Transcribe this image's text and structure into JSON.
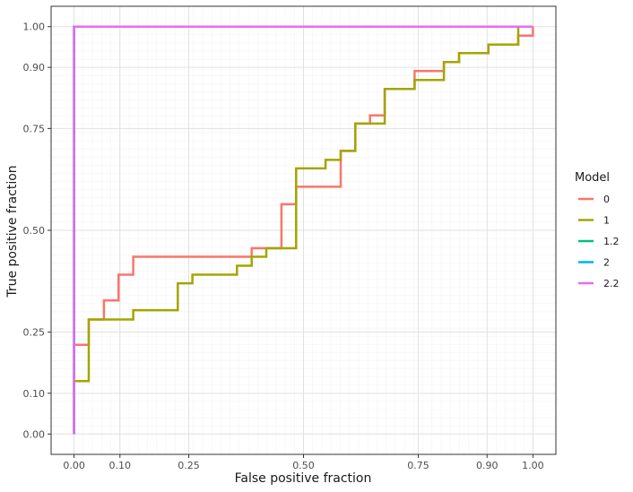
{
  "chart_data": {
    "type": "line",
    "xlabel": "False positive fraction",
    "ylabel": "True positive fraction",
    "xlim": [
      -0.05,
      1.05
    ],
    "ylim": [
      -0.05,
      1.05
    ],
    "x_ticks": [
      0.0,
      0.1,
      0.25,
      0.5,
      0.75,
      0.9,
      1.0
    ],
    "x_tick_labels": [
      "0.00",
      "0.10",
      "0.25",
      "0.50",
      "0.75",
      "0.90",
      "1.00"
    ],
    "y_ticks": [
      0.0,
      0.1,
      0.25,
      0.5,
      0.75,
      0.9,
      1.0
    ],
    "y_tick_labels": [
      "0.00",
      "0.10",
      "0.25",
      "0.50",
      "0.75",
      "0.90",
      "1.00"
    ],
    "grid": true,
    "legend": {
      "title": "Model",
      "position": "right",
      "entries": [
        "0",
        "1",
        "1.2",
        "2",
        "2.2"
      ]
    },
    "series": [
      {
        "name": "0",
        "color": "#F8766D",
        "x": [
          0.0,
          0.0,
          0.032,
          0.032,
          0.065,
          0.065,
          0.097,
          0.097,
          0.129,
          0.129,
          0.387,
          0.387,
          0.452,
          0.452,
          0.484,
          0.484,
          0.581,
          0.581,
          0.613,
          0.613,
          0.645,
          0.645,
          0.677,
          0.677,
          0.742,
          0.742,
          0.806,
          0.806,
          0.839,
          0.839,
          0.903,
          0.903,
          0.968,
          0.968,
          1.0,
          1.0
        ],
        "y": [
          0.0,
          0.219,
          0.219,
          0.281,
          0.281,
          0.328,
          0.328,
          0.391,
          0.391,
          0.435,
          0.435,
          0.456,
          0.456,
          0.564,
          0.564,
          0.607,
          0.607,
          0.695,
          0.695,
          0.762,
          0.762,
          0.782,
          0.782,
          0.847,
          0.847,
          0.891,
          0.891,
          0.913,
          0.913,
          0.935,
          0.935,
          0.956,
          0.956,
          0.978,
          0.978,
          1.0
        ]
      },
      {
        "name": "1",
        "color": "#A3A500",
        "x": [
          0.0,
          0.0,
          0.032,
          0.032,
          0.129,
          0.129,
          0.226,
          0.226,
          0.258,
          0.258,
          0.355,
          0.355,
          0.387,
          0.387,
          0.419,
          0.419,
          0.484,
          0.484,
          0.548,
          0.548,
          0.581,
          0.581,
          0.613,
          0.613,
          0.677,
          0.677,
          0.742,
          0.742,
          0.806,
          0.806,
          0.839,
          0.839,
          0.903,
          0.903,
          0.968,
          0.968,
          1.0
        ],
        "y": [
          0.0,
          0.13,
          0.13,
          0.281,
          0.281,
          0.304,
          0.304,
          0.37,
          0.37,
          0.391,
          0.391,
          0.413,
          0.413,
          0.435,
          0.435,
          0.456,
          0.456,
          0.652,
          0.652,
          0.673,
          0.673,
          0.695,
          0.695,
          0.762,
          0.762,
          0.847,
          0.847,
          0.869,
          0.869,
          0.913,
          0.913,
          0.935,
          0.935,
          0.956,
          0.956,
          1.0,
          1.0
        ]
      },
      {
        "name": "1.2",
        "color": "#00BF7D",
        "x": [
          0.0,
          0.0,
          1.0
        ],
        "y": [
          0.0,
          1.0,
          1.0
        ]
      },
      {
        "name": "2",
        "color": "#00B0F6",
        "x": [
          0.0,
          0.0,
          1.0
        ],
        "y": [
          0.0,
          1.0,
          1.0
        ]
      },
      {
        "name": "2.2",
        "color": "#E76BF3",
        "x": [
          0.0,
          0.0,
          1.0
        ],
        "y": [
          0.0,
          1.0,
          1.0
        ]
      }
    ]
  }
}
